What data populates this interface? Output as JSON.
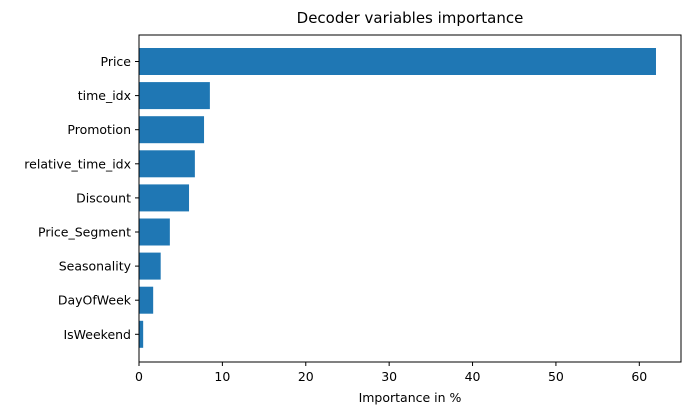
{
  "chart_data": {
    "type": "bar",
    "orientation": "horizontal",
    "title": "Decoder variables importance",
    "xlabel": "Importance in %",
    "ylabel": "",
    "categories": [
      "Price",
      "time_idx",
      "Promotion",
      "relative_time_idx",
      "Discount",
      "Price_Segment",
      "Seasonality",
      "DayOfWeek",
      "IsWeekend"
    ],
    "values": [
      62.0,
      8.5,
      7.8,
      6.7,
      6.0,
      3.7,
      2.6,
      1.7,
      0.5
    ],
    "xlim": [
      0,
      65
    ],
    "xticks": [
      0,
      10,
      20,
      30,
      40,
      50,
      60
    ],
    "bar_color": "#1f77b4",
    "grid": false
  }
}
